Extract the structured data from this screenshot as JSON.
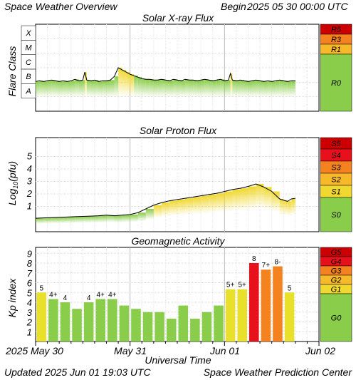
{
  "header": {
    "title": "Space Weather Overview",
    "begin_label": "Begin",
    "begin_value": "2025 05 30 00:00 UTC"
  },
  "footer": {
    "updated_label": "Updated",
    "updated_value": "2025 Jun 01 19:03 UTC",
    "credit": "Space Weather Prediction Center"
  },
  "xaxis": {
    "label": "Universal Time",
    "ticks": [
      "2025 May 30",
      "May 31",
      "Jun 01",
      "Jun 02"
    ]
  },
  "colors": {
    "green": "#8acd4a",
    "yellow": "#f0d830",
    "amber": "#f7b92a",
    "orange": "#f4821f",
    "red": "#e8101a",
    "darkred": "#cc0000",
    "kp_yellow": "#e8e02a"
  },
  "chart_data": [
    {
      "type": "line",
      "title": "Solar X-ray Flux",
      "ylabel": "Flare Class",
      "class_labels": [
        "X",
        "M",
        "C",
        "B",
        "A"
      ],
      "x_unit": "hours since 2025 05 30 00:00 UTC",
      "xlim": [
        0,
        72
      ],
      "scale_labels": [
        {
          "label": "R5",
          "color": "#cc0000"
        },
        {
          "label": "R3",
          "color": "#f4821f"
        },
        {
          "label": "R1",
          "color": "#f7b92a"
        },
        {
          "label": "R0",
          "color": "#8acd4a"
        }
      ],
      "series": [
        {
          "x": [
            0,
            1,
            2,
            3,
            4,
            5,
            6,
            7,
            8,
            9,
            10,
            11,
            12,
            12.5,
            13,
            14,
            15,
            16,
            17,
            18,
            19,
            20,
            21,
            22,
            23,
            24,
            25,
            26,
            27,
            28,
            29,
            30,
            31,
            32,
            33,
            34,
            35,
            36,
            37,
            38,
            39,
            40,
            41,
            42,
            43,
            44,
            45,
            46,
            47,
            48,
            49,
            49.5,
            50,
            51,
            52,
            53,
            54,
            55,
            56,
            57,
            58,
            59,
            60,
            61,
            62,
            63,
            64,
            65,
            66
          ],
          "y": [
            2.45,
            2.5,
            2.45,
            2.5,
            2.55,
            2.5,
            2.45,
            2.5,
            2.45,
            2.5,
            2.6,
            2.5,
            2.55,
            3.1,
            2.55,
            2.5,
            2.55,
            2.45,
            2.5,
            2.5,
            2.55,
            2.8,
            3.4,
            3.25,
            3.1,
            2.95,
            2.85,
            2.75,
            2.65,
            2.6,
            2.6,
            2.55,
            2.55,
            2.6,
            2.55,
            2.5,
            2.6,
            2.55,
            2.5,
            2.6,
            2.55,
            2.55,
            2.5,
            2.55,
            2.6,
            2.55,
            2.5,
            2.55,
            2.6,
            2.5,
            2.55,
            3.0,
            2.55,
            2.5,
            2.55,
            2.5,
            2.45,
            2.5,
            2.55,
            2.5,
            2.45,
            2.5,
            2.45,
            2.5,
            2.55,
            2.5,
            2.45,
            2.5,
            2.5
          ]
        }
      ]
    },
    {
      "type": "line",
      "title": "Solar Proton Flux",
      "ylabel": "Log10(pfu)",
      "ylabel_main": "Log",
      "ylabel_sub": "10",
      "ylabel_tail": "(pfu)",
      "yticks": [
        "5",
        "4",
        "3",
        "2",
        "1"
      ],
      "x_unit": "hours since 2025 05 30 00:00 UTC",
      "xlim": [
        0,
        72
      ],
      "scale_labels": [
        {
          "label": "S5",
          "color": "#cc0000"
        },
        {
          "label": "S4",
          "color": "#e8101a"
        },
        {
          "label": "S3",
          "color": "#f4821f"
        },
        {
          "label": "S2",
          "color": "#f7b92a"
        },
        {
          "label": "S1",
          "color": "#f0d830"
        },
        {
          "label": "S0",
          "color": "#8acd4a"
        }
      ],
      "series": [
        {
          "x": [
            0,
            2,
            4,
            6,
            8,
            10,
            12,
            14,
            16,
            18,
            20,
            22,
            24,
            26,
            28,
            30,
            32,
            34,
            36,
            38,
            40,
            42,
            44,
            46,
            48,
            50,
            52,
            54,
            56,
            58,
            60,
            62,
            63,
            64,
            65,
            66
          ],
          "y": [
            0.05,
            0.08,
            0.1,
            0.12,
            0.15,
            0.18,
            0.2,
            0.22,
            0.25,
            0.3,
            0.25,
            0.3,
            0.35,
            0.5,
            0.8,
            1.1,
            1.3,
            1.45,
            1.55,
            1.65,
            1.75,
            1.85,
            1.95,
            2.05,
            2.2,
            2.35,
            2.45,
            2.6,
            2.8,
            2.55,
            2.2,
            1.6,
            1.5,
            1.4,
            1.6,
            1.65
          ]
        }
      ]
    },
    {
      "type": "bar",
      "title": "Geomagnetic Activity",
      "ylabel": "Kp index",
      "yticks": [
        "9",
        "8",
        "7",
        "6",
        "5",
        "4",
        "3",
        "2",
        "1"
      ],
      "ylim": [
        0,
        9.6
      ],
      "scale_labels": [
        {
          "label": "G5",
          "color": "#cc0000"
        },
        {
          "label": "G4",
          "color": "#e8101a"
        },
        {
          "label": "G3",
          "color": "#f4821f"
        },
        {
          "label": "G2",
          "color": "#f7b92a"
        },
        {
          "label": "G1",
          "color": "#f0d830"
        },
        {
          "label": "G0",
          "color": "#8acd4a"
        }
      ],
      "values": [
        5,
        4.33,
        4,
        3.33,
        4,
        4.33,
        4.33,
        3.67,
        3.33,
        3,
        3,
        2.33,
        3.67,
        2.33,
        3,
        3.67,
        5.33,
        5.33,
        8,
        7.33,
        7.67,
        5
      ],
      "labels": [
        "5",
        "4+",
        "4",
        "",
        "4",
        "4+",
        "4+",
        "",
        "",
        "",
        "",
        "",
        "",
        "",
        "",
        "",
        "5+",
        "5+",
        "8",
        "7+",
        "8-",
        "5"
      ],
      "colors": [
        "#e8e02a",
        "#8acd4a",
        "#8acd4a",
        "#8acd4a",
        "#8acd4a",
        "#8acd4a",
        "#8acd4a",
        "#8acd4a",
        "#8acd4a",
        "#8acd4a",
        "#8acd4a",
        "#8acd4a",
        "#8acd4a",
        "#8acd4a",
        "#8acd4a",
        "#8acd4a",
        "#e8e02a",
        "#e8e02a",
        "#e8101a",
        "#f4821f",
        "#f4821f",
        "#e8e02a"
      ]
    }
  ]
}
